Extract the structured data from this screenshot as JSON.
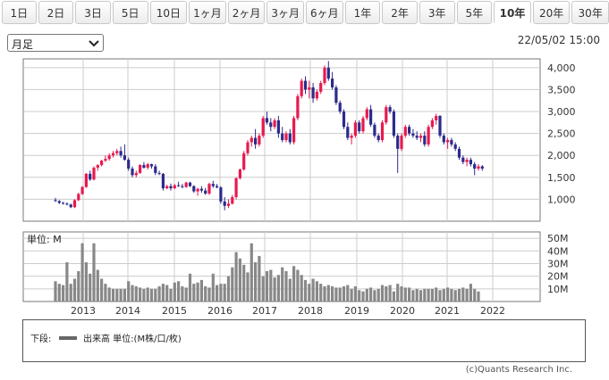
{
  "tabs": [
    "1日",
    "2日",
    "3日",
    "5日",
    "10日",
    "1ヶ月",
    "2ヶ月",
    "3ヶ月",
    "6ヶ月",
    "1年",
    "2年",
    "3年",
    "5年",
    "10年",
    "20年",
    "30年"
  ],
  "active_tab": 13,
  "period_select": {
    "value": "月足",
    "chevron": "chevron-down-icon"
  },
  "timestamp": "22/05/02 15:00",
  "volume_unit_label": "単位: M",
  "legend": {
    "prefix": "下段:",
    "series": "出来高 単位:(M株/口/枚)"
  },
  "copyright": "(c)Quants Research Inc.",
  "colors": {
    "up": "#e8194f",
    "down": "#2b2b8c",
    "volume": "#888888",
    "grid": "#cccccc"
  },
  "chart_data": [
    {
      "type": "candlestick",
      "title": "",
      "x_tick_labels": [
        "2013",
        "2014",
        "2015",
        "2016",
        "2017",
        "2018",
        "2019",
        "2020",
        "2021",
        "2022"
      ],
      "y_tick_labels": [
        "4,000",
        "3,500",
        "3,000",
        "2,500",
        "2,000",
        "1,500",
        "1,000"
      ],
      "ylim": [
        500,
        4200
      ],
      "grid": true,
      "ohlc": [
        [
          980,
          1030,
          940,
          960
        ],
        [
          960,
          980,
          890,
          920
        ],
        [
          920,
          940,
          880,
          900
        ],
        [
          900,
          930,
          860,
          880
        ],
        [
          880,
          900,
          800,
          820
        ],
        [
          820,
          1000,
          800,
          980
        ],
        [
          980,
          1150,
          960,
          1120
        ],
        [
          1120,
          1300,
          1100,
          1280
        ],
        [
          1280,
          1600,
          1260,
          1580
        ],
        [
          1580,
          1650,
          1420,
          1450
        ],
        [
          1450,
          1750,
          1430,
          1720
        ],
        [
          1720,
          1800,
          1650,
          1780
        ],
        [
          1780,
          1900,
          1750,
          1880
        ],
        [
          1880,
          2000,
          1850,
          1920
        ],
        [
          1920,
          2050,
          1880,
          2000
        ],
        [
          2000,
          2100,
          1950,
          2050
        ],
        [
          2050,
          2150,
          2000,
          2100
        ],
        [
          2100,
          2200,
          1950,
          2000
        ],
        [
          2000,
          2250,
          1880,
          1900
        ],
        [
          1900,
          1950,
          1650,
          1700
        ],
        [
          1700,
          1750,
          1500,
          1550
        ],
        [
          1550,
          1650,
          1500,
          1600
        ],
        [
          1600,
          1800,
          1580,
          1780
        ],
        [
          1780,
          1850,
          1700,
          1720
        ],
        [
          1720,
          1830,
          1680,
          1800
        ],
        [
          1800,
          1810,
          1700,
          1750
        ],
        [
          1750,
          1800,
          1550,
          1600
        ],
        [
          1600,
          1650,
          1550,
          1580
        ],
        [
          1580,
          1600,
          1200,
          1250
        ],
        [
          1250,
          1330,
          1230,
          1300
        ],
        [
          1300,
          1360,
          1200,
          1250
        ],
        [
          1250,
          1350,
          1230,
          1320
        ],
        [
          1320,
          1400,
          1280,
          1300
        ],
        [
          1300,
          1350,
          1250,
          1280
        ],
        [
          1280,
          1400,
          1260,
          1380
        ],
        [
          1380,
          1400,
          1280,
          1300
        ],
        [
          1300,
          1320,
          1150,
          1180
        ],
        [
          1180,
          1260,
          1080,
          1240
        ],
        [
          1240,
          1300,
          1150,
          1200
        ],
        [
          1200,
          1260,
          1100,
          1130
        ],
        [
          1130,
          1380,
          1100,
          1350
        ],
        [
          1350,
          1420,
          1260,
          1300
        ],
        [
          1300,
          1350,
          1250,
          1270
        ],
        [
          1270,
          1300,
          900,
          950
        ],
        [
          950,
          1050,
          750,
          850
        ],
        [
          850,
          1000,
          800,
          900
        ],
        [
          900,
          1100,
          880,
          1050
        ],
        [
          1050,
          1500,
          1000,
          1480
        ],
        [
          1480,
          1700,
          1450,
          1680
        ],
        [
          1680,
          2100,
          1650,
          2050
        ],
        [
          2050,
          2350,
          2000,
          2300
        ],
        [
          2300,
          2450,
          2200,
          2400
        ],
        [
          2400,
          2600,
          2150,
          2250
        ],
        [
          2250,
          2500,
          2200,
          2450
        ],
        [
          2450,
          2900,
          2400,
          2850
        ],
        [
          2850,
          3000,
          2700,
          2750
        ],
        [
          2750,
          2850,
          2550,
          2650
        ],
        [
          2650,
          2850,
          2600,
          2800
        ],
        [
          2800,
          2900,
          2400,
          2500
        ],
        [
          2500,
          2650,
          2300,
          2350
        ],
        [
          2350,
          2550,
          2300,
          2500
        ],
        [
          2500,
          2600,
          2250,
          2300
        ],
        [
          2300,
          2900,
          2250,
          2850
        ],
        [
          2850,
          3400,
          2800,
          3350
        ],
        [
          3350,
          3750,
          3300,
          3700
        ],
        [
          3700,
          3800,
          3400,
          3500
        ],
        [
          3500,
          3700,
          3300,
          3550
        ],
        [
          3550,
          3650,
          3200,
          3300
        ],
        [
          3300,
          3500,
          3250,
          3450
        ],
        [
          3450,
          3700,
          3400,
          3650
        ],
        [
          3650,
          4050,
          3600,
          4000
        ],
        [
          4000,
          4150,
          3700,
          3750
        ],
        [
          3750,
          3900,
          3500,
          3550
        ],
        [
          3550,
          3600,
          3150,
          3200
        ],
        [
          3200,
          3250,
          2950,
          3000
        ],
        [
          3000,
          3050,
          2600,
          2650
        ],
        [
          2650,
          2750,
          2350,
          2400
        ],
        [
          2400,
          2500,
          2250,
          2450
        ],
        [
          2450,
          2800,
          2400,
          2750
        ],
        [
          2750,
          2800,
          2500,
          2550
        ],
        [
          2550,
          2900,
          2500,
          2850
        ],
        [
          2850,
          3100,
          2800,
          3050
        ],
        [
          3050,
          3150,
          2650,
          2700
        ],
        [
          2700,
          2750,
          2400,
          2450
        ],
        [
          2450,
          2500,
          2300,
          2350
        ],
        [
          2350,
          2800,
          2300,
          2750
        ],
        [
          2750,
          3150,
          2700,
          3100
        ],
        [
          3100,
          3150,
          2950,
          3000
        ],
        [
          3000,
          3050,
          2400,
          2450
        ],
        [
          2450,
          2500,
          1600,
          2150
        ],
        [
          2150,
          2500,
          2100,
          2450
        ],
        [
          2450,
          2700,
          2400,
          2650
        ],
        [
          2650,
          2700,
          2450,
          2500
        ],
        [
          2500,
          2600,
          2400,
          2450
        ],
        [
          2450,
          2550,
          2350,
          2400
        ],
        [
          2400,
          2500,
          2300,
          2450
        ],
        [
          2450,
          2550,
          2200,
          2250
        ],
        [
          2250,
          2700,
          2200,
          2650
        ],
        [
          2650,
          2850,
          2600,
          2800
        ],
        [
          2800,
          2950,
          2700,
          2900
        ],
        [
          2900,
          2920,
          2400,
          2450
        ],
        [
          2450,
          2500,
          2250,
          2300
        ],
        [
          2300,
          2400,
          2150,
          2350
        ],
        [
          2350,
          2400,
          2200,
          2250
        ],
        [
          2250,
          2300,
          2100,
          2150
        ],
        [
          2150,
          2200,
          1900,
          1950
        ],
        [
          1950,
          2000,
          1800,
          1850
        ],
        [
          1850,
          1950,
          1750,
          1900
        ],
        [
          1900,
          1950,
          1750,
          1800
        ],
        [
          1800,
          1850,
          1550,
          1700
        ],
        [
          1700,
          1800,
          1650,
          1750
        ],
        [
          1750,
          1780,
          1650,
          1700
        ]
      ]
    },
    {
      "type": "bar",
      "title": "",
      "x_tick_labels": [
        "2013",
        "2014",
        "2015",
        "2016",
        "2017",
        "2018",
        "2019",
        "2020",
        "2021",
        "2022"
      ],
      "y_tick_labels": [
        "50M",
        "40M",
        "30M",
        "20M",
        "10M"
      ],
      "ylim": [
        0,
        55
      ],
      "values": [
        16,
        14,
        13,
        31,
        14,
        18,
        24,
        46,
        31,
        22,
        46,
        25,
        18,
        14,
        11,
        10,
        10,
        10,
        10,
        16,
        13,
        12,
        11,
        10,
        11,
        10,
        10,
        12,
        14,
        13,
        10,
        15,
        16,
        12,
        11,
        22,
        14,
        15,
        17,
        12,
        11,
        22,
        13,
        14,
        14,
        20,
        27,
        39,
        34,
        29,
        23,
        46,
        31,
        36,
        20,
        24,
        25,
        19,
        21,
        27,
        24,
        18,
        28,
        25,
        21,
        17,
        14,
        18,
        16,
        14,
        12,
        13,
        12,
        11,
        11,
        12,
        13,
        10,
        12,
        9,
        8,
        10,
        11,
        9,
        10,
        13,
        12,
        13,
        8,
        14,
        12,
        11,
        11,
        9,
        10,
        9,
        10,
        10,
        10,
        11,
        9,
        10,
        11,
        10,
        9,
        10,
        11,
        10,
        14,
        10,
        8
      ]
    }
  ]
}
